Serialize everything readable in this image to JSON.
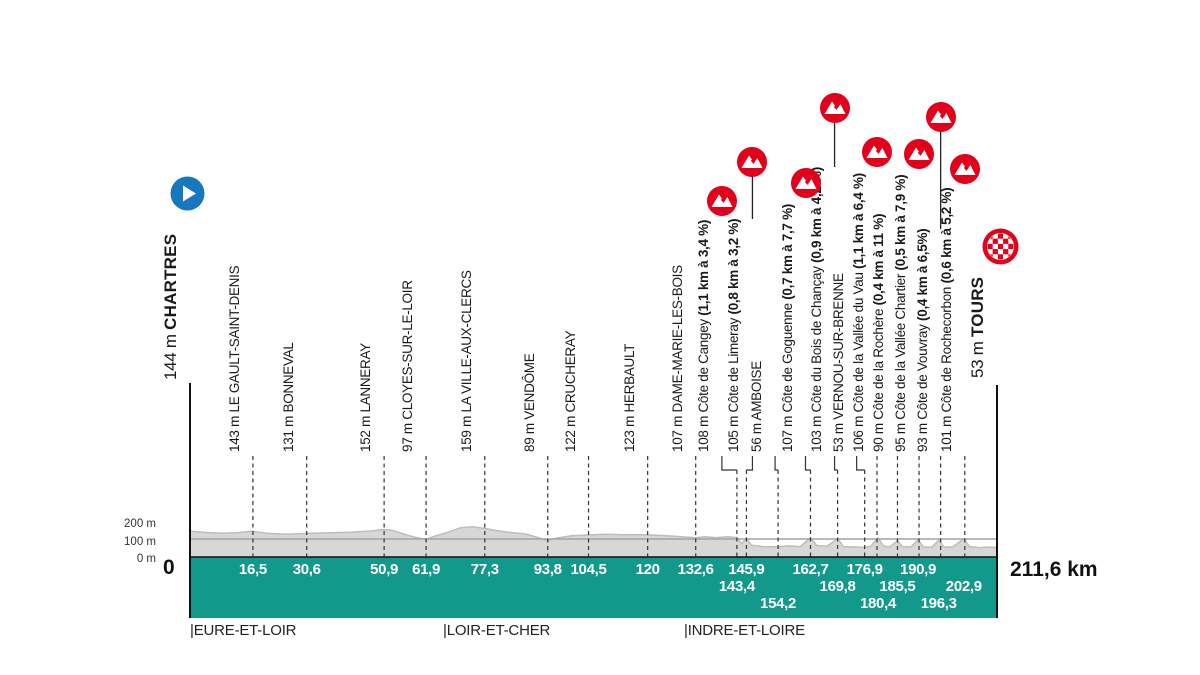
{
  "colors": {
    "teal_band": "#12998C",
    "climb_red": "#E2001A",
    "start_blue": "#1878BE",
    "profile_gray": "#D7D7D7",
    "profile_edge": "#BDBDBD",
    "gridline_gray": "#A3A3A3",
    "line_dark": "#333333"
  },
  "axis": {
    "ticks": [
      "200 m",
      "100 m",
      "0 m"
    ],
    "origin_label": "0",
    "total_label": "211,6 km"
  },
  "departments": [
    {
      "label": "|EURE-ET-LOIR",
      "km": 0
    },
    {
      "label": "|LOIR-ET-CHER",
      "km": 66.3
    },
    {
      "label": "|INDRE-ET-LOIRE",
      "km": 129.5
    }
  ],
  "start": {
    "elevation": "144 m",
    "name": "CHARTRES",
    "km": 0
  },
  "finish": {
    "elevation": "53 m",
    "name": "TOURS",
    "km": 211.6
  },
  "waypoints": [
    {
      "km": 16.5,
      "km_label": "16,5",
      "elevation": "143 m",
      "name": "LE GAULT-SAINT-DENIS",
      "type": "town",
      "row": 1,
      "icon": false
    },
    {
      "km": 30.6,
      "km_label": "30,6",
      "elevation": "131 m",
      "name": "BONNEVAL",
      "type": "town",
      "row": 1,
      "icon": false
    },
    {
      "km": 50.9,
      "km_label": "50,9",
      "elevation": "152 m",
      "name": "LANNERAY",
      "type": "town",
      "row": 1,
      "icon": false
    },
    {
      "km": 61.9,
      "km_label": "61,9",
      "elevation": "97 m",
      "name": "CLOYES-SUR-LE-LOIR",
      "type": "town",
      "row": 1,
      "icon": false
    },
    {
      "km": 77.3,
      "km_label": "77,3",
      "elevation": "159 m",
      "name": "LA VILLE-AUX-CLERCS",
      "type": "town",
      "row": 1,
      "icon": false
    },
    {
      "km": 93.8,
      "km_label": "93,8",
      "elevation": "89 m",
      "name": "VENDÔME",
      "type": "town",
      "row": 1,
      "icon": false
    },
    {
      "km": 104.5,
      "km_label": "104,5",
      "elevation": "122 m",
      "name": "CRUCHERAY",
      "type": "town",
      "row": 1,
      "icon": false
    },
    {
      "km": 120,
      "km_label": "120",
      "elevation": "123 m",
      "name": "HERBAULT",
      "type": "town",
      "row": 1,
      "icon": false
    },
    {
      "km": 132.6,
      "km_label": "132,6",
      "elevation": "107 m",
      "name": "DAME-MARIE-LES-BOIS",
      "type": "town",
      "row": 1,
      "icon": false
    },
    {
      "km": 143.4,
      "km_label": "143,4",
      "elevation": "108 m",
      "name": "Côte de Cangey",
      "stats": "(1,1 km à 3,4 %)",
      "type": "climb",
      "row": 2,
      "icon": true
    },
    {
      "km": 145.9,
      "km_label": "145,9",
      "elevation": "105 m",
      "name": "Côte de Limeray",
      "stats": "(0,8 km à 3,2 %)",
      "type": "climb",
      "row": 1,
      "icon": true
    },
    {
      "km": 154.2,
      "km_label": "154,2",
      "elevation": "56 m",
      "name": "AMBOISE",
      "type": "town",
      "row": 3,
      "icon": false
    },
    {
      "km": 162.7,
      "km_label": "162,7",
      "elevation": "107 m",
      "name": "Côte de Goguenne",
      "stats": "(0,7 km à 7,7 %)",
      "type": "climb",
      "row": 1,
      "icon": true
    },
    {
      "km": 169.8,
      "km_label": "169,8",
      "elevation": "103 m",
      "name": "Côte du Bois de Chançay",
      "stats": "(0,9 km à 4,2 %)",
      "type": "climb",
      "row": 2,
      "icon": true
    },
    {
      "km": 176.9,
      "km_label": "176,9",
      "elevation": "53 m",
      "name": "VERNOU-SUR-BRENNE",
      "type": "town",
      "row": 1,
      "icon": false
    },
    {
      "km": 180.4,
      "km_label": "180,4",
      "elevation": "106 m",
      "name": "Côte de la Vallée du Vau",
      "stats": "(1,1 km à 6,4 %)",
      "type": "climb",
      "row": 3,
      "icon": true
    },
    {
      "km": 185.5,
      "km_label": "185,5",
      "elevation": "90 m",
      "name": "Côte de la Rochère",
      "stats": "(0,4 km à 11 %)",
      "type": "climb",
      "row": 2,
      "icon": false
    },
    {
      "km": 190.9,
      "km_label": "190,9",
      "elevation": "95 m",
      "name": "Côte de la Vallée Chartier",
      "stats": "(0,5 km à 7,9 %)",
      "type": "climb",
      "row": 1,
      "icon": true
    },
    {
      "km": 196.3,
      "km_label": "196,3",
      "elevation": "93 m",
      "name": "Côte de Vouvray",
      "stats": "(0,4 km à 6,5%)",
      "type": "climb",
      "row": 3,
      "icon": true
    },
    {
      "km": 202.9,
      "km_label": "202,9",
      "elevation": "101 m",
      "name": "Côte de Rochecorbon",
      "stats": "(0,6 km à 5,2 %)",
      "type": "climb",
      "row": 2,
      "icon": true
    }
  ],
  "chart_data": {
    "type": "area",
    "x_unit": "km",
    "y_unit": "m",
    "x_range": [
      0,
      211.6
    ],
    "y_ticks_m": [
      0,
      100,
      200
    ],
    "total_distance_km": 211.6,
    "profile": [
      [
        0,
        144
      ],
      [
        4,
        136
      ],
      [
        9,
        132
      ],
      [
        13,
        136
      ],
      [
        16.5,
        143
      ],
      [
        20,
        132
      ],
      [
        25,
        126
      ],
      [
        30.6,
        131
      ],
      [
        36,
        134
      ],
      [
        42,
        138
      ],
      [
        47,
        144
      ],
      [
        50.9,
        152
      ],
      [
        53,
        149
      ],
      [
        56,
        128
      ],
      [
        59,
        110
      ],
      [
        61.9,
        97
      ],
      [
        64,
        115
      ],
      [
        68,
        140
      ],
      [
        71,
        163
      ],
      [
        74,
        168
      ],
      [
        77.3,
        159
      ],
      [
        80,
        148
      ],
      [
        84,
        136
      ],
      [
        88,
        128
      ],
      [
        91,
        110
      ],
      [
        93.8,
        89
      ],
      [
        96,
        105
      ],
      [
        100,
        118
      ],
      [
        104.5,
        122
      ],
      [
        109,
        126
      ],
      [
        114,
        124
      ],
      [
        120,
        123
      ],
      [
        125,
        118
      ],
      [
        129,
        112
      ],
      [
        132.6,
        107
      ],
      [
        135,
        112
      ],
      [
        138,
        108
      ],
      [
        141,
        112
      ],
      [
        143.4,
        108
      ],
      [
        144.6,
        72
      ],
      [
        145.9,
        105
      ],
      [
        147.2,
        66
      ],
      [
        150,
        58
      ],
      [
        154.2,
        56
      ],
      [
        157,
        62
      ],
      [
        160,
        58
      ],
      [
        162.7,
        107
      ],
      [
        164.3,
        64
      ],
      [
        167,
        60
      ],
      [
        169.8,
        103
      ],
      [
        171.3,
        58
      ],
      [
        174,
        56
      ],
      [
        176.9,
        53
      ],
      [
        178.5,
        60
      ],
      [
        180.4,
        106
      ],
      [
        181.9,
        60
      ],
      [
        183.5,
        56
      ],
      [
        185.5,
        90
      ],
      [
        186.8,
        58
      ],
      [
        189,
        56
      ],
      [
        190.9,
        95
      ],
      [
        192.3,
        56
      ],
      [
        194.5,
        54
      ],
      [
        196.3,
        93
      ],
      [
        197.8,
        54
      ],
      [
        200,
        56
      ],
      [
        202.9,
        101
      ],
      [
        204.4,
        58
      ],
      [
        207,
        52
      ],
      [
        209,
        55
      ],
      [
        211.6,
        53
      ]
    ]
  }
}
